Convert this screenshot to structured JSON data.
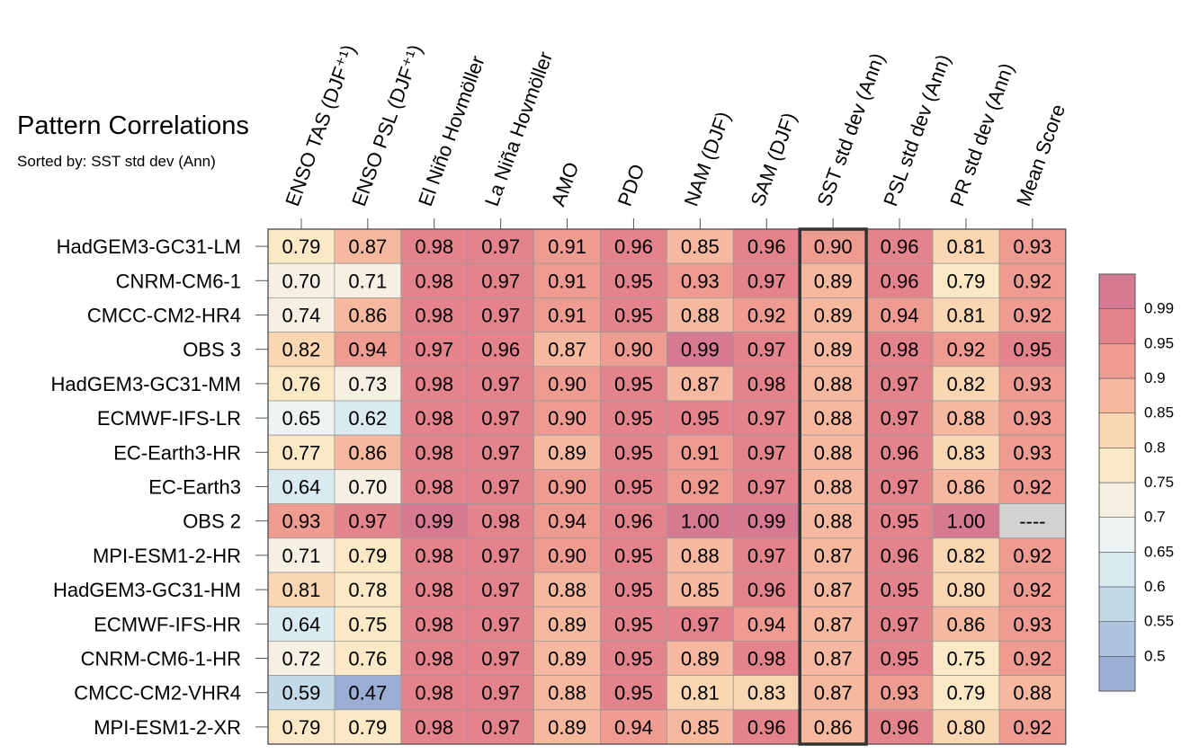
{
  "chart_data": {
    "type": "heatmap",
    "title": "Pattern Correlations",
    "subtitle": "Sorted by: SST std dev (Ann)",
    "columns": [
      "ENSO TAS (DJF⁺¹)",
      "ENSO PSL (DJF⁺¹)",
      "El Niño Hovmöller",
      "La Niña Hovmöller",
      "AMO",
      "PDO",
      "NAM (DJF)",
      "SAM (DJF)",
      "SST std dev (Ann)",
      "PSL std dev (Ann)",
      "PR std dev (Ann)",
      "Mean Score"
    ],
    "rows": [
      "HadGEM3-GC31-LM",
      "CNRM-CM6-1",
      "CMCC-CM2-HR4",
      "OBS 3",
      "HadGEM3-GC31-MM",
      "ECMWF-IFS-LR",
      "EC-Earth3-HR",
      "EC-Earth3",
      "OBS 2",
      "MPI-ESM1-2-HR",
      "HadGEM3-GC31-HM",
      "ECMWF-IFS-HR",
      "CNRM-CM6-1-HR",
      "CMCC-CM2-VHR4",
      "MPI-ESM1-2-XR"
    ],
    "values": [
      [
        "0.79",
        "0.87",
        "0.98",
        "0.97",
        "0.91",
        "0.96",
        "0.85",
        "0.96",
        "0.90",
        "0.96",
        "0.81",
        "0.93"
      ],
      [
        "0.70",
        "0.71",
        "0.98",
        "0.97",
        "0.91",
        "0.95",
        "0.93",
        "0.97",
        "0.89",
        "0.96",
        "0.79",
        "0.92"
      ],
      [
        "0.74",
        "0.86",
        "0.98",
        "0.97",
        "0.91",
        "0.95",
        "0.88",
        "0.92",
        "0.89",
        "0.94",
        "0.81",
        "0.92"
      ],
      [
        "0.82",
        "0.94",
        "0.97",
        "0.96",
        "0.87",
        "0.90",
        "0.99",
        "0.97",
        "0.89",
        "0.98",
        "0.92",
        "0.95"
      ],
      [
        "0.76",
        "0.73",
        "0.98",
        "0.97",
        "0.90",
        "0.95",
        "0.87",
        "0.98",
        "0.88",
        "0.97",
        "0.82",
        "0.93"
      ],
      [
        "0.65",
        "0.62",
        "0.98",
        "0.97",
        "0.90",
        "0.95",
        "0.95",
        "0.97",
        "0.88",
        "0.97",
        "0.88",
        "0.93"
      ],
      [
        "0.77",
        "0.86",
        "0.98",
        "0.97",
        "0.89",
        "0.95",
        "0.91",
        "0.97",
        "0.88",
        "0.96",
        "0.83",
        "0.93"
      ],
      [
        "0.64",
        "0.70",
        "0.98",
        "0.97",
        "0.90",
        "0.95",
        "0.92",
        "0.97",
        "0.88",
        "0.97",
        "0.86",
        "0.92"
      ],
      [
        "0.93",
        "0.97",
        "0.99",
        "0.98",
        "0.94",
        "0.96",
        "1.00",
        "0.99",
        "0.88",
        "0.95",
        "1.00",
        "----"
      ],
      [
        "0.71",
        "0.79",
        "0.98",
        "0.97",
        "0.90",
        "0.95",
        "0.88",
        "0.97",
        "0.87",
        "0.96",
        "0.82",
        "0.92"
      ],
      [
        "0.81",
        "0.78",
        "0.98",
        "0.97",
        "0.88",
        "0.95",
        "0.85",
        "0.96",
        "0.87",
        "0.95",
        "0.80",
        "0.92"
      ],
      [
        "0.64",
        "0.75",
        "0.98",
        "0.97",
        "0.89",
        "0.95",
        "0.97",
        "0.94",
        "0.87",
        "0.97",
        "0.86",
        "0.93"
      ],
      [
        "0.72",
        "0.76",
        "0.98",
        "0.97",
        "0.89",
        "0.95",
        "0.89",
        "0.98",
        "0.87",
        "0.95",
        "0.75",
        "0.92"
      ],
      [
        "0.59",
        "0.47",
        "0.98",
        "0.97",
        "0.88",
        "0.95",
        "0.81",
        "0.83",
        "0.87",
        "0.93",
        "0.79",
        "0.88"
      ],
      [
        "0.79",
        "0.79",
        "0.98",
        "0.97",
        "0.89",
        "0.94",
        "0.85",
        "0.96",
        "0.86",
        "0.96",
        "0.80",
        "0.92"
      ]
    ],
    "highlighted_column": "SST std dev (Ann)",
    "missing_color": "#d3d3d3",
    "colorbar": {
      "labels": [
        "0.99",
        "0.95",
        "0.9",
        "0.85",
        "0.8",
        "0.75",
        "0.7",
        "0.65",
        "0.6",
        "0.55",
        "0.5"
      ],
      "bounds": [
        0.5,
        0.55,
        0.6,
        0.65,
        0.7,
        0.75,
        0.8,
        0.85,
        0.9,
        0.95,
        0.99
      ],
      "colors": [
        "#9aaed4",
        "#aec4df",
        "#c2d9e8",
        "#d9eaf1",
        "#eef3f3",
        "#f5f0e2",
        "#fbe8c4",
        "#fad7b2",
        "#f6b9a0",
        "#ee9c91",
        "#e3838c",
        "#d67a92"
      ],
      "placement": "right"
    },
    "grid": true
  }
}
